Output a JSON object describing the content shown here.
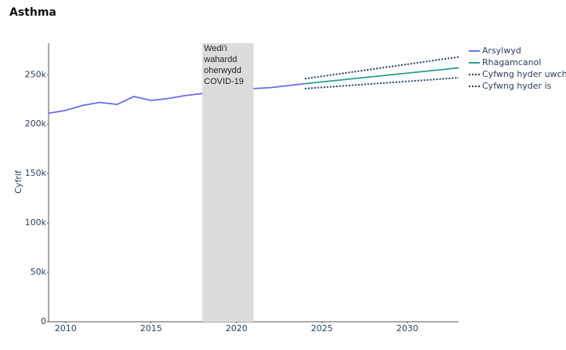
{
  "chart_data": {
    "type": "line",
    "title": "Asthma",
    "y_label": "Cyfrif",
    "xlim": [
      2009,
      2033
    ],
    "xticks": [
      2010,
      2015,
      2020,
      2025,
      2030
    ],
    "ylim": [
      0,
      282000
    ],
    "yticks": [
      0,
      {
        "value": 50000,
        "label": "50k"
      },
      {
        "value": 100000,
        "label": "100k"
      },
      {
        "value": 150000,
        "label": "150k"
      },
      {
        "value": 200000,
        "label": "200k"
      },
      {
        "value": 250000,
        "label": "250k"
      }
    ],
    "shaded_region": {
      "x": [
        2018,
        2021
      ],
      "color": "#dcdcdc",
      "label_lines": [
        "Wedi'i",
        "wahardd",
        "oherwydd",
        "COVID-19"
      ]
    },
    "series": [
      {
        "name": "Arsylwyd",
        "color": "#6670e8",
        "style": "solid",
        "x": [
          2009,
          2010,
          2011,
          2012,
          2013,
          2014,
          2015,
          2016,
          2017,
          2018,
          2021,
          2022,
          2023,
          2024
        ],
        "values": [
          211000,
          214000,
          219000,
          222000,
          220000,
          228000,
          224000,
          226000,
          229000,
          231000,
          236000,
          237000,
          239000,
          241000
        ]
      },
      {
        "name": "Rhagamcanol",
        "color": "#2a9d8f",
        "style": "solid",
        "x": [
          2024,
          2033
        ],
        "values": [
          241000,
          257000
        ]
      },
      {
        "name": "Cyfwng hyder uwch",
        "color": "#1f3a6e",
        "style": "dotted",
        "x": [
          2024,
          2033
        ],
        "values": [
          246000,
          268000
        ]
      },
      {
        "name": "Cyfwng hyder is",
        "color": "#1f3a6e",
        "style": "dotted",
        "x": [
          2024,
          2033
        ],
        "values": [
          236000,
          247000
        ]
      }
    ]
  }
}
